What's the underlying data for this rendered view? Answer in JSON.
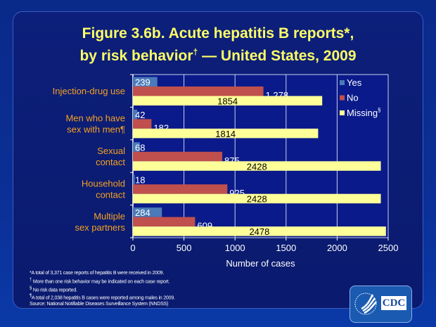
{
  "title_line1": "Figure 3.6b. Acute hepatitis B reports*,",
  "title_line2_a": "by risk behavior",
  "title_line2_sup": "†",
  "title_line2_b": " — United States, 2009",
  "chart_data": {
    "type": "bar",
    "orientation": "horizontal",
    "categories": [
      "Injection-drug use",
      "Men who have sex with men¶",
      "Sexual contact",
      "Household contact",
      "Multiple sex partners"
    ],
    "category_lines": [
      [
        "Injection-drug use"
      ],
      [
        "Men who have",
        "sex with men¶"
      ],
      [
        "Sexual",
        "contact"
      ],
      [
        "Household",
        "contact"
      ],
      [
        "Multiple",
        "sex partners"
      ]
    ],
    "series": [
      {
        "name": "Yes",
        "color": "#4a7ab8",
        "values": [
          239,
          42,
          68,
          18,
          284
        ],
        "labels": [
          "239",
          "42",
          "68",
          "18",
          "284"
        ]
      },
      {
        "name": "No",
        "color": "#c0504d",
        "values": [
          1278,
          182,
          875,
          925,
          609
        ],
        "labels": [
          "1,278",
          "182",
          "875",
          "925",
          "609"
        ]
      },
      {
        "name": "Missing§",
        "color": "#ffff99",
        "values": [
          1854,
          1814,
          2428,
          2428,
          2478
        ],
        "labels": [
          "1854",
          "1814",
          "2428",
          "2428",
          "2478"
        ]
      }
    ],
    "xlabel": "Number of cases",
    "xlim": [
      0,
      2500
    ],
    "xticks": [
      "0",
      "500",
      "1000",
      "1500",
      "2000",
      "2500"
    ],
    "grid": true,
    "legend_position": "right"
  },
  "footnotes": {
    "f1": "*A total of 3,371 case reports of hepatitis B were received in 2009.",
    "f2_sym": "†",
    "f2": " More than one risk behavior may be indicated on each case report.",
    "f3_sym": "§",
    "f3": " No risk data reported.",
    "f4_sym": "¶",
    "f4": "A total of 2,038 hepatitis B cases were reported among males in 2009.",
    "source": "Source: National Notifiable Diseases Surveillance System (NNDSS)"
  },
  "logo_text": "CDC"
}
